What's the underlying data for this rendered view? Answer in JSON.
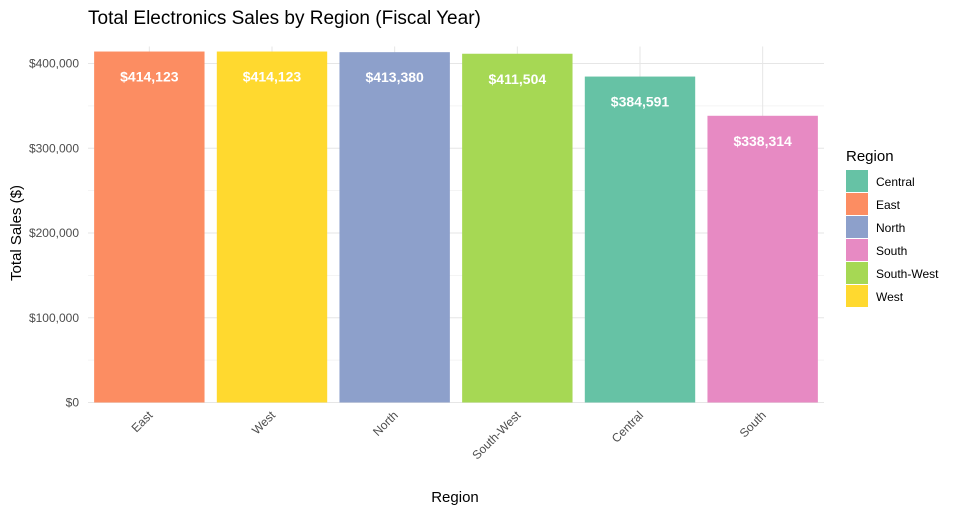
{
  "chart_data": {
    "type": "bar",
    "title": "Total Electronics Sales by Region (Fiscal Year)",
    "xlabel": "Region",
    "ylabel": "Total Sales ($)",
    "ylim": [
      0,
      420000
    ],
    "yticks": [
      0,
      100000,
      200000,
      300000,
      400000
    ],
    "ytick_labels": [
      "$0",
      "$100,000",
      "$200,000",
      "$300,000",
      "$400,000"
    ],
    "grid": true,
    "categories": [
      "East",
      "West",
      "North",
      "South-West",
      "Central",
      "South"
    ],
    "values": [
      414123,
      414123,
      413380,
      411504,
      384591,
      338314
    ],
    "value_labels": [
      "$414,123",
      "$414,123",
      "$413,380",
      "$411,504",
      "$384,591",
      "$338,314"
    ],
    "bar_colors": [
      "#FC8D62",
      "#FFD92F",
      "#8DA0CB",
      "#A6D854",
      "#66C2A5",
      "#E78AC3"
    ],
    "legend": {
      "title": "Region",
      "position": "right",
      "entries": [
        {
          "label": "Central",
          "color": "#66C2A5"
        },
        {
          "label": "East",
          "color": "#FC8D62"
        },
        {
          "label": "North",
          "color": "#8DA0CB"
        },
        {
          "label": "South",
          "color": "#E78AC3"
        },
        {
          "label": "South-West",
          "color": "#A6D854"
        },
        {
          "label": "West",
          "color": "#FFD92F"
        }
      ]
    }
  }
}
